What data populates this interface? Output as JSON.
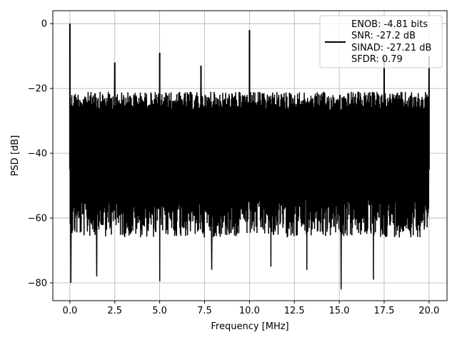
{
  "chart_data": {
    "type": "line",
    "xlabel": "Frequency [MHz]",
    "ylabel": "PSD [dB]",
    "xlim": [
      -0.95,
      21.0
    ],
    "ylim": [
      -85.5,
      4.0
    ],
    "grid": true,
    "x_ticks": [
      0.0,
      2.5,
      5.0,
      7.5,
      10.0,
      12.5,
      15.0,
      17.5,
      20.0
    ],
    "x_tick_labels": [
      "0.0",
      "2.5",
      "5.0",
      "7.5",
      "10.0",
      "12.5",
      "15.0",
      "17.5",
      "20.0"
    ],
    "y_ticks": [
      0,
      -20,
      -40,
      -60,
      -80
    ],
    "y_tick_labels": [
      "0",
      "−20",
      "−40",
      "−60",
      "−80"
    ],
    "series_color": "#000000",
    "noise_band": {
      "x_range": [
        0.0,
        20.0
      ],
      "upper_envelope_db": -20,
      "dense_low_db": -62,
      "typical_floor_db": -45
    },
    "spurs": [
      {
        "x": 0.0,
        "y": 0.0
      },
      {
        "x": 2.5,
        "y": -12
      },
      {
        "x": 5.0,
        "y": -9
      },
      {
        "x": 7.3,
        "y": -13
      },
      {
        "x": 10.0,
        "y": -2
      },
      {
        "x": 17.5,
        "y": -10
      },
      {
        "x": 20.0,
        "y": -10
      }
    ],
    "dips": [
      {
        "x": 0.05,
        "y": -80
      },
      {
        "x": 1.5,
        "y": -78
      },
      {
        "x": 5.0,
        "y": -79.5
      },
      {
        "x": 15.1,
        "y": -82
      },
      {
        "x": 16.9,
        "y": -79
      },
      {
        "x": 7.9,
        "y": -76
      },
      {
        "x": 11.2,
        "y": -75
      },
      {
        "x": 13.2,
        "y": -76
      }
    ],
    "legend": {
      "position": "upper right",
      "entries": [
        "ENOB: -4.81 bits",
        "SNR: -27.2 dB",
        "SINAD: -27.21 dB",
        "SFDR: 0.79"
      ]
    }
  }
}
